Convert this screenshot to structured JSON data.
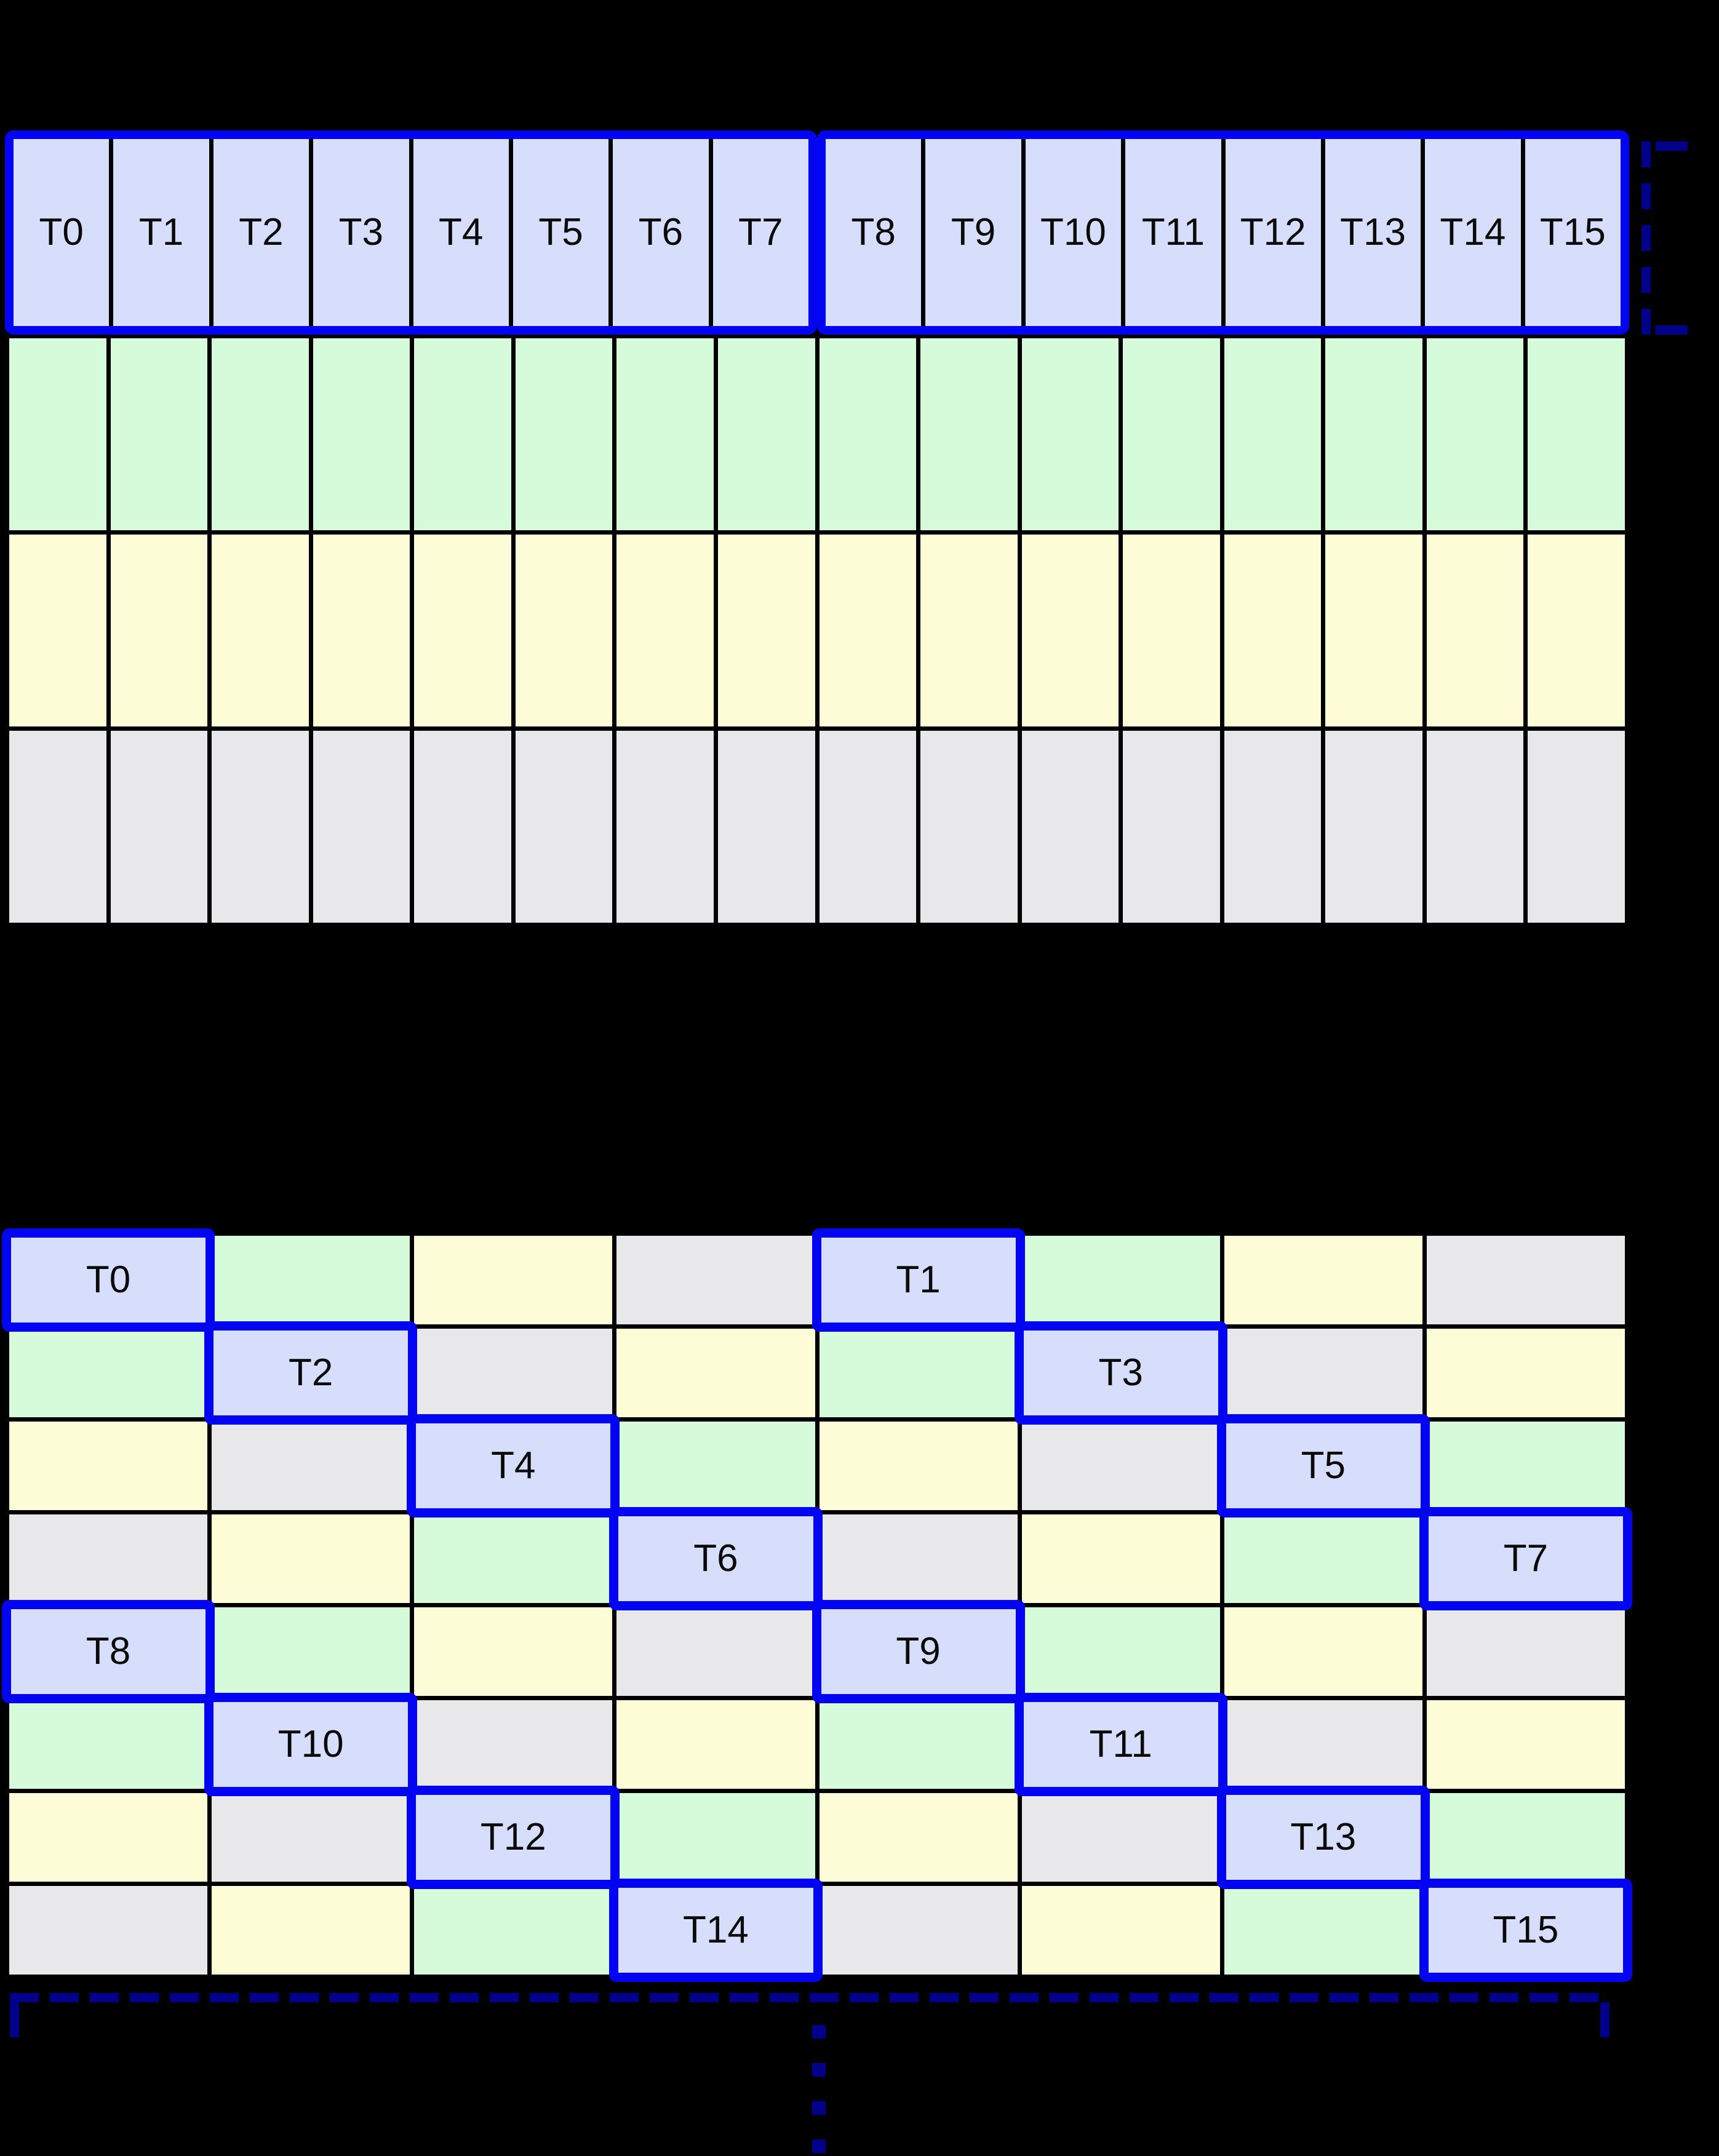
{
  "palette": {
    "background": "#000000",
    "thread": "#d7defb",
    "green": "#d6fbda",
    "yellow": "#fcfcd6",
    "gray": "#e8e8ea",
    "blue_border": "#0204f2",
    "navy": "#00008b",
    "grid_line": "#000000",
    "label": "#0a0a0a"
  },
  "top_grid": {
    "columns": 16,
    "thread_row": {
      "fill": "thread",
      "groups": [
        {
          "labels": [
            "T0",
            "T1",
            "T2",
            "T3",
            "T4",
            "T5",
            "T6",
            "T7"
          ]
        },
        {
          "labels": [
            "T8",
            "T9",
            "T10",
            "T11",
            "T12",
            "T13",
            "T14",
            "T15"
          ]
        }
      ]
    },
    "data_rows": [
      {
        "fill": "green"
      },
      {
        "fill": "yellow"
      },
      {
        "fill": "gray"
      }
    ]
  },
  "bottom_grid": {
    "columns": 8,
    "rows": [
      [
        {
          "fill": "thread",
          "label": "T0"
        },
        {
          "fill": "green"
        },
        {
          "fill": "yellow"
        },
        {
          "fill": "gray"
        },
        {
          "fill": "thread",
          "label": "T1"
        },
        {
          "fill": "green"
        },
        {
          "fill": "yellow"
        },
        {
          "fill": "gray"
        }
      ],
      [
        {
          "fill": "green"
        },
        {
          "fill": "thread",
          "label": "T2"
        },
        {
          "fill": "gray"
        },
        {
          "fill": "yellow"
        },
        {
          "fill": "green"
        },
        {
          "fill": "thread",
          "label": "T3"
        },
        {
          "fill": "gray"
        },
        {
          "fill": "yellow"
        }
      ],
      [
        {
          "fill": "yellow"
        },
        {
          "fill": "gray"
        },
        {
          "fill": "thread",
          "label": "T4"
        },
        {
          "fill": "green"
        },
        {
          "fill": "yellow"
        },
        {
          "fill": "gray"
        },
        {
          "fill": "thread",
          "label": "T5"
        },
        {
          "fill": "green"
        }
      ],
      [
        {
          "fill": "gray"
        },
        {
          "fill": "yellow"
        },
        {
          "fill": "green"
        },
        {
          "fill": "thread",
          "label": "T6"
        },
        {
          "fill": "gray"
        },
        {
          "fill": "yellow"
        },
        {
          "fill": "green"
        },
        {
          "fill": "thread",
          "label": "T7"
        }
      ],
      [
        {
          "fill": "thread",
          "label": "T8"
        },
        {
          "fill": "green"
        },
        {
          "fill": "yellow"
        },
        {
          "fill": "gray"
        },
        {
          "fill": "thread",
          "label": "T9"
        },
        {
          "fill": "green"
        },
        {
          "fill": "yellow"
        },
        {
          "fill": "gray"
        }
      ],
      [
        {
          "fill": "green"
        },
        {
          "fill": "thread",
          "label": "T10"
        },
        {
          "fill": "gray"
        },
        {
          "fill": "yellow"
        },
        {
          "fill": "green"
        },
        {
          "fill": "thread",
          "label": "T11"
        },
        {
          "fill": "gray"
        },
        {
          "fill": "yellow"
        }
      ],
      [
        {
          "fill": "yellow"
        },
        {
          "fill": "gray"
        },
        {
          "fill": "thread",
          "label": "T12"
        },
        {
          "fill": "green"
        },
        {
          "fill": "yellow"
        },
        {
          "fill": "gray"
        },
        {
          "fill": "thread",
          "label": "T13"
        },
        {
          "fill": "green"
        }
      ],
      [
        {
          "fill": "gray"
        },
        {
          "fill": "yellow"
        },
        {
          "fill": "green"
        },
        {
          "fill": "thread",
          "label": "T14"
        },
        {
          "fill": "gray"
        },
        {
          "fill": "yellow"
        },
        {
          "fill": "green"
        },
        {
          "fill": "thread",
          "label": "T15"
        }
      ]
    ]
  },
  "annotations": {
    "row_bracket": {
      "style": "dashed",
      "color": "navy",
      "side": "right-of-thread-row"
    },
    "bottom_brace": {
      "style": "dashed",
      "color": "navy"
    },
    "ellipsis_dots": {
      "count": 4,
      "color": "navy"
    }
  }
}
